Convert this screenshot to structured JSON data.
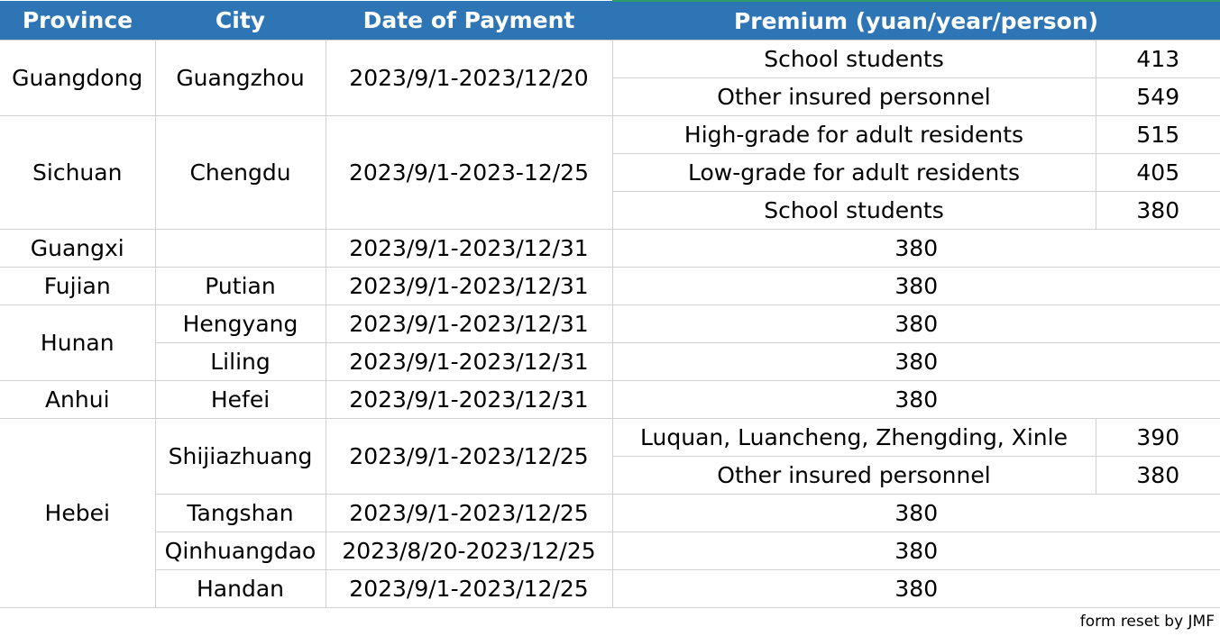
{
  "header": {
    "province": "Province",
    "city": "City",
    "date": "Date of Payment",
    "premium": "Premium (yuan/year/person)"
  },
  "rows": {
    "guangdong": {
      "province": "Guangdong",
      "city": "Guangzhou",
      "date": "2023/9/1-2023/12/20",
      "sub": [
        {
          "label": "School students",
          "value": "413"
        },
        {
          "label": "Other insured personnel",
          "value": "549"
        }
      ]
    },
    "sichuan": {
      "province": "Sichuan",
      "city": "Chengdu",
      "date": "2023/9/1-2023-12/25",
      "sub": [
        {
          "label": "High-grade for adult residents",
          "value": "515"
        },
        {
          "label": "Low-grade for adult residents",
          "value": "405"
        },
        {
          "label": "School students",
          "value": "380"
        }
      ]
    },
    "guangxi": {
      "province": "Guangxi",
      "city": "",
      "date": "2023/9/1-2023/12/31",
      "premium": "380"
    },
    "fujian": {
      "province": "Fujian",
      "city": "Putian",
      "date": "2023/9/1-2023/12/31",
      "premium": "380"
    },
    "hunan": {
      "province": "Hunan",
      "cities": [
        {
          "city": "Hengyang",
          "date": "2023/9/1-2023/12/31",
          "premium": "380"
        },
        {
          "city": "Liling",
          "date": "2023/9/1-2023/12/31",
          "premium": "380"
        }
      ]
    },
    "anhui": {
      "province": "Anhui",
      "city": "Hefei",
      "date": "2023/9/1-2023/12/31",
      "premium": "380"
    },
    "hebei": {
      "province": "Hebei",
      "shijiazhuang": {
        "city": "Shijiazhuang",
        "date": "2023/9/1-2023/12/25",
        "sub": [
          {
            "label": "Luquan, Luancheng, Zhengding, Xinle",
            "value": "390"
          },
          {
            "label": "Other insured personnel",
            "value": "380"
          }
        ]
      },
      "cities": [
        {
          "city": "Tangshan",
          "date": "2023/9/1-2023/12/25",
          "premium": "380"
        },
        {
          "city": "Qinhuangdao",
          "date": "2023/8/20-2023/12/25",
          "premium": "380"
        },
        {
          "city": "Handan",
          "date": "2023/9/1-2023/12/25",
          "premium": "380"
        }
      ]
    }
  },
  "footer": "form reset by JMF"
}
